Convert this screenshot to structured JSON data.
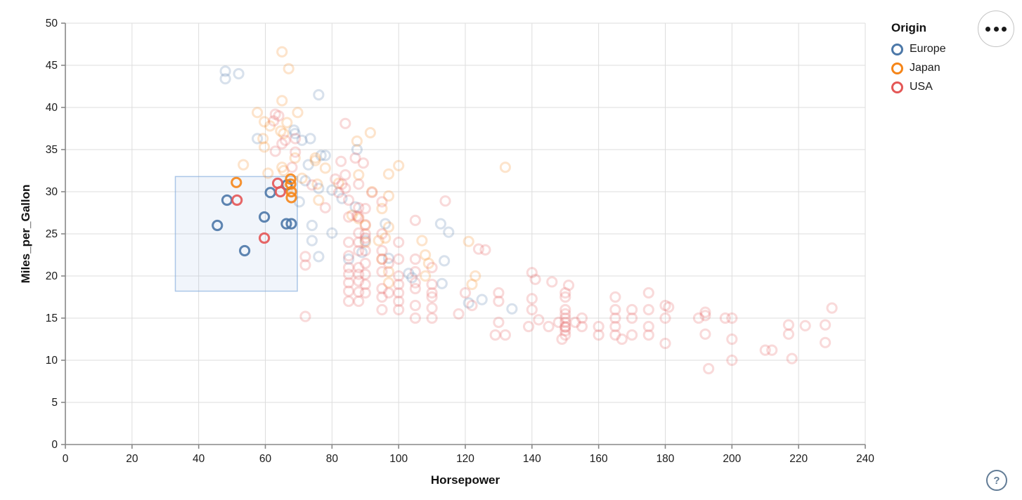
{
  "legend": {
    "title": "Origin",
    "items": [
      {
        "label": "Europe",
        "color": "#4c78a8"
      },
      {
        "label": "Japan",
        "color": "#f58518"
      },
      {
        "label": "USA",
        "color": "#e45756"
      }
    ]
  },
  "controls": {
    "menu_button": "ellipsis-icon",
    "help_label": "?"
  },
  "chart_data": {
    "type": "scatter",
    "title": "",
    "xlabel": "Horsepower",
    "ylabel": "Miles_per_Gallon",
    "xlim": [
      0,
      240
    ],
    "ylim": [
      0,
      50
    ],
    "x_ticks": [
      0,
      20,
      40,
      60,
      80,
      100,
      120,
      140,
      160,
      180,
      200,
      220,
      240
    ],
    "y_ticks": [
      0,
      5,
      10,
      15,
      20,
      25,
      30,
      35,
      40,
      45,
      50
    ],
    "grid": true,
    "legend_position": "top-right",
    "brush": {
      "x_range": [
        33,
        69.6
      ],
      "y_range": [
        18.2,
        31.8
      ]
    },
    "style": {
      "grid_color": "#dddddd",
      "axis_color": "#888888",
      "label_color": "#1a1a1a",
      "brush_fill": "rgba(120,160,215,0.10)",
      "brush_stroke": "rgba(130,170,220,0.65)",
      "point_radius": 6.6,
      "point_stroke_width": 3,
      "selected_opacity": 0.9,
      "unselected_opacity": 0.22
    },
    "series": [
      {
        "name": "Europe",
        "color": "#4c78a8",
        "selected": [
          [
            45.6,
            26
          ],
          [
            48.5,
            29
          ],
          [
            53.8,
            23
          ],
          [
            59.7,
            27
          ],
          [
            61.5,
            29.9
          ],
          [
            66.3,
            26.2
          ],
          [
            67.8,
            26.2
          ],
          [
            66.5,
            30.8
          ]
        ],
        "unselected": [
          [
            48,
            44.3
          ],
          [
            48,
            43.4
          ],
          [
            52,
            44
          ],
          [
            76,
            41.5
          ],
          [
            68.6,
            37.3
          ],
          [
            68.9,
            36.9
          ],
          [
            57.6,
            36.3
          ],
          [
            73.5,
            36.3
          ],
          [
            71,
            36.1
          ],
          [
            87.5,
            35
          ],
          [
            76.7,
            34.3
          ],
          [
            78,
            34.3
          ],
          [
            72.9,
            33.2
          ],
          [
            72,
            31.3
          ],
          [
            76,
            30.4
          ],
          [
            80,
            30.2
          ],
          [
            83,
            29.2
          ],
          [
            70.2,
            28.8
          ],
          [
            87,
            28.2
          ],
          [
            96,
            26.2
          ],
          [
            112.6,
            26.2
          ],
          [
            74,
            26
          ],
          [
            115,
            25.2
          ],
          [
            80,
            25.1
          ],
          [
            74,
            24.2
          ],
          [
            90,
            24.2
          ],
          [
            85,
            22
          ],
          [
            76,
            22.3
          ],
          [
            89,
            22.8
          ],
          [
            97,
            22.1
          ],
          [
            113.7,
            21.8
          ],
          [
            103,
            20.3
          ],
          [
            104,
            19.8
          ],
          [
            113,
            19.1
          ],
          [
            121,
            16.8
          ],
          [
            125,
            17.2
          ],
          [
            134,
            16.1
          ]
        ]
      },
      {
        "name": "Japan",
        "color": "#f58518",
        "selected": [
          [
            51.3,
            31.1
          ],
          [
            67.6,
            31.5
          ],
          [
            67.6,
            30.9
          ],
          [
            67.8,
            30
          ],
          [
            67.8,
            29.3
          ]
        ],
        "unselected": [
          [
            65,
            46.6
          ],
          [
            67,
            44.6
          ],
          [
            65,
            40.8
          ],
          [
            57.6,
            39.4
          ],
          [
            69.7,
            39.4
          ],
          [
            59.7,
            38.3
          ],
          [
            61.4,
            37.8
          ],
          [
            66.5,
            38.2
          ],
          [
            64.6,
            37.2
          ],
          [
            65.5,
            36.9
          ],
          [
            59.3,
            36.3
          ],
          [
            91.5,
            37
          ],
          [
            87.5,
            36
          ],
          [
            59.7,
            35.3
          ],
          [
            68.9,
            34
          ],
          [
            75,
            34
          ],
          [
            75,
            33.7
          ],
          [
            53.4,
            33.2
          ],
          [
            100,
            33.1
          ],
          [
            132,
            32.9
          ],
          [
            65,
            32.9
          ],
          [
            60.8,
            32.2
          ],
          [
            65.5,
            32.5
          ],
          [
            97,
            32.1
          ],
          [
            88,
            32
          ],
          [
            78,
            32.8
          ],
          [
            71,
            31.6
          ],
          [
            82,
            31
          ],
          [
            75.6,
            30.9
          ],
          [
            67,
            30.5
          ],
          [
            92,
            30
          ],
          [
            97,
            29.5
          ],
          [
            76,
            29
          ],
          [
            95,
            28
          ],
          [
            86,
            27.2
          ],
          [
            88,
            26.8
          ],
          [
            90,
            26
          ],
          [
            97,
            25.8
          ],
          [
            96,
            24.5
          ],
          [
            107,
            24.2
          ],
          [
            94,
            24.2
          ],
          [
            90,
            24
          ],
          [
            121,
            24.1
          ],
          [
            108,
            22.5
          ],
          [
            95,
            22
          ],
          [
            109,
            21.5
          ],
          [
            97,
            20.5
          ],
          [
            108,
            20
          ],
          [
            123,
            20
          ],
          [
            97,
            19.2
          ],
          [
            122,
            19
          ]
        ]
      },
      {
        "name": "USA",
        "color": "#e45756",
        "selected": [
          [
            51.5,
            29
          ],
          [
            59.7,
            24.5
          ],
          [
            63.7,
            31
          ],
          [
            64.5,
            30
          ]
        ],
        "unselected": [
          [
            64,
            39
          ],
          [
            63,
            39.2
          ],
          [
            62.5,
            38.4
          ],
          [
            84,
            38.1
          ],
          [
            66,
            36.1
          ],
          [
            69,
            36.3
          ],
          [
            65,
            35.7
          ],
          [
            63,
            34.8
          ],
          [
            69,
            34.7
          ],
          [
            87,
            34
          ],
          [
            82.7,
            33.6
          ],
          [
            89.4,
            33.4
          ],
          [
            68,
            32.9
          ],
          [
            84,
            32
          ],
          [
            81,
            31.5
          ],
          [
            83,
            30.9
          ],
          [
            74,
            30.8
          ],
          [
            84,
            30.4
          ],
          [
            82,
            29.9
          ],
          [
            88,
            30.9
          ],
          [
            85,
            29
          ],
          [
            92,
            29.9
          ],
          [
            114,
            28.9
          ],
          [
            95,
            28.8
          ],
          [
            78,
            28.1
          ],
          [
            88,
            28.1
          ],
          [
            90,
            28
          ],
          [
            87.5,
            27.1
          ],
          [
            85,
            27
          ],
          [
            88,
            27
          ],
          [
            90,
            26.1
          ],
          [
            105,
            26.6
          ],
          [
            88,
            25.1
          ],
          [
            90,
            25
          ],
          [
            124,
            23.2
          ],
          [
            72,
            22.3
          ],
          [
            72,
            21.3
          ],
          [
            72,
            15.2
          ],
          [
            85,
            24
          ],
          [
            85,
            22.4
          ],
          [
            85,
            21
          ],
          [
            85,
            20.2
          ],
          [
            85,
            19.2
          ],
          [
            85,
            18.2
          ],
          [
            85,
            17
          ],
          [
            88,
            24
          ],
          [
            88,
            23
          ],
          [
            88,
            21
          ],
          [
            88,
            20.2
          ],
          [
            88,
            19.4
          ],
          [
            88,
            18.1
          ],
          [
            88,
            17
          ],
          [
            90,
            24.5
          ],
          [
            90,
            23
          ],
          [
            90,
            21.5
          ],
          [
            90,
            20.2
          ],
          [
            90,
            19
          ],
          [
            90,
            18
          ],
          [
            95,
            25
          ],
          [
            95,
            23
          ],
          [
            95,
            22
          ],
          [
            95,
            20.5
          ],
          [
            95,
            18.5
          ],
          [
            95,
            17.5
          ],
          [
            95,
            16
          ],
          [
            97,
            21.5
          ],
          [
            97,
            18
          ],
          [
            100,
            24
          ],
          [
            100,
            22
          ],
          [
            100,
            20
          ],
          [
            100,
            19
          ],
          [
            100,
            18
          ],
          [
            100,
            17
          ],
          [
            100,
            16
          ],
          [
            105,
            22
          ],
          [
            105,
            20.5
          ],
          [
            105,
            19.2
          ],
          [
            105,
            18.5
          ],
          [
            105,
            16.5
          ],
          [
            105,
            15
          ],
          [
            110,
            21
          ],
          [
            110,
            19
          ],
          [
            110,
            18
          ],
          [
            110,
            17.5
          ],
          [
            110,
            16.2
          ],
          [
            110,
            15
          ],
          [
            118,
            15.5
          ],
          [
            120,
            18
          ],
          [
            122,
            16.5
          ],
          [
            126,
            23.1
          ],
          [
            130,
            18
          ],
          [
            130,
            17
          ],
          [
            130,
            14.5
          ],
          [
            129,
            13
          ],
          [
            132,
            13
          ],
          [
            140,
            20.4
          ],
          [
            141,
            19.6
          ],
          [
            140,
            17.3
          ],
          [
            140,
            16
          ],
          [
            142,
            14.8
          ],
          [
            139,
            14
          ],
          [
            146,
            19.3
          ],
          [
            145,
            14
          ],
          [
            148,
            14.5
          ],
          [
            151,
            18.9
          ],
          [
            150,
            18
          ],
          [
            150,
            17.5
          ],
          [
            150,
            16
          ],
          [
            150,
            15.5
          ],
          [
            150,
            15
          ],
          [
            150,
            14.5
          ],
          [
            150,
            14
          ],
          [
            150,
            13.9
          ],
          [
            150,
            13.5
          ],
          [
            150,
            13
          ],
          [
            149,
            12.5
          ],
          [
            155,
            15
          ],
          [
            155,
            14
          ],
          [
            153,
            14.5
          ],
          [
            160,
            14
          ],
          [
            160,
            13
          ],
          [
            165,
            17.5
          ],
          [
            165,
            16
          ],
          [
            165,
            15
          ],
          [
            165,
            14
          ],
          [
            165,
            13
          ],
          [
            167,
            12.5
          ],
          [
            170,
            16
          ],
          [
            170,
            15
          ],
          [
            170,
            13
          ],
          [
            175,
            18
          ],
          [
            175,
            16
          ],
          [
            175,
            14
          ],
          [
            175,
            13
          ],
          [
            180,
            16.5
          ],
          [
            181,
            16.3
          ],
          [
            180,
            15
          ],
          [
            180,
            12
          ],
          [
            190,
            15
          ],
          [
            192,
            15.7
          ],
          [
            192,
            15.3
          ],
          [
            192,
            13.1
          ],
          [
            193,
            9
          ],
          [
            198,
            15
          ],
          [
            200,
            15
          ],
          [
            200,
            12.5
          ],
          [
            200,
            10
          ],
          [
            210,
            11.2
          ],
          [
            212,
            11.2
          ],
          [
            217,
            14.2
          ],
          [
            217,
            13.1
          ],
          [
            218,
            10.2
          ],
          [
            222,
            14.1
          ],
          [
            228,
            14.2
          ],
          [
            228,
            12.1
          ],
          [
            230,
            16.2
          ]
        ]
      }
    ]
  }
}
